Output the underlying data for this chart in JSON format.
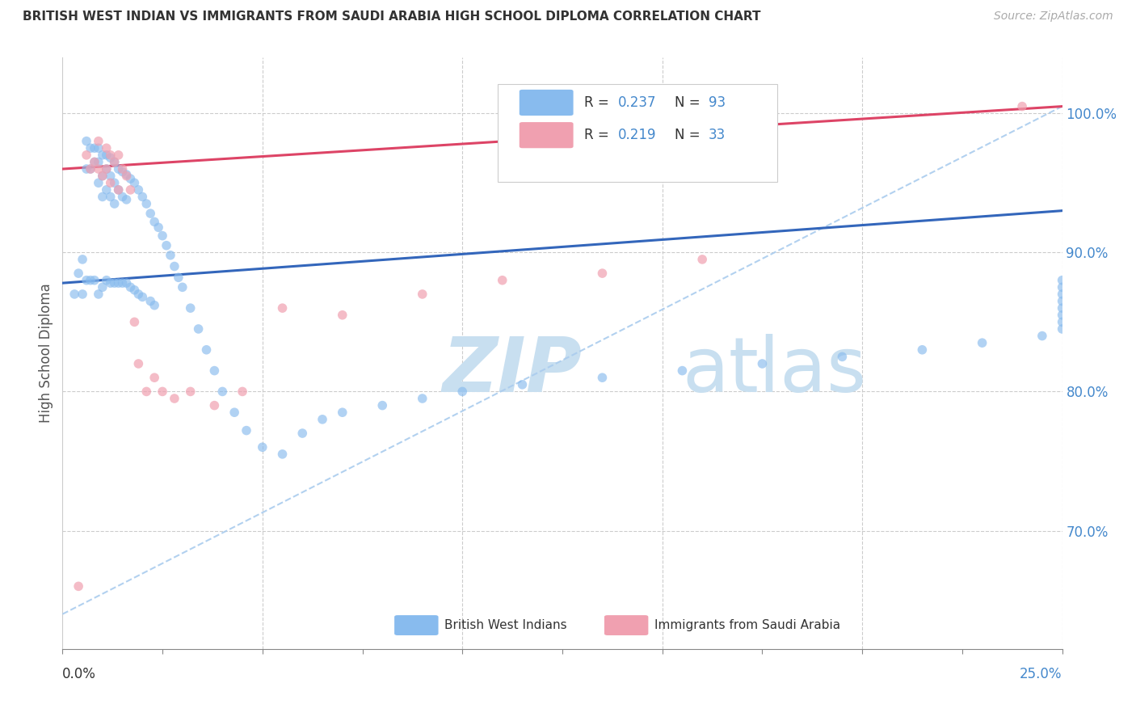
{
  "title": "BRITISH WEST INDIAN VS IMMIGRANTS FROM SAUDI ARABIA HIGH SCHOOL DIPLOMA CORRELATION CHART",
  "source": "Source: ZipAtlas.com",
  "ylabel": "High School Diploma",
  "xlim": [
    0.0,
    0.25
  ],
  "ylim": [
    0.615,
    1.04
  ],
  "color_blue": "#88bbee",
  "color_pink": "#f0a0b0",
  "color_trendline_blue": "#3366bb",
  "color_trendline_pink": "#dd4466",
  "color_trendline_dashed": "#aaccee",
  "watermark_zip": "ZIP",
  "watermark_atlas": "atlas",
  "watermark_color": "#c8dff0",
  "blue_scatter_x": [
    0.003,
    0.004,
    0.005,
    0.005,
    0.006,
    0.006,
    0.006,
    0.007,
    0.007,
    0.007,
    0.008,
    0.008,
    0.008,
    0.009,
    0.009,
    0.009,
    0.009,
    0.01,
    0.01,
    0.01,
    0.01,
    0.011,
    0.011,
    0.011,
    0.011,
    0.012,
    0.012,
    0.012,
    0.012,
    0.013,
    0.013,
    0.013,
    0.013,
    0.014,
    0.014,
    0.014,
    0.015,
    0.015,
    0.015,
    0.016,
    0.016,
    0.016,
    0.017,
    0.017,
    0.018,
    0.018,
    0.019,
    0.019,
    0.02,
    0.02,
    0.021,
    0.022,
    0.022,
    0.023,
    0.023,
    0.024,
    0.025,
    0.026,
    0.027,
    0.028,
    0.029,
    0.03,
    0.032,
    0.034,
    0.036,
    0.038,
    0.04,
    0.043,
    0.046,
    0.05,
    0.055,
    0.06,
    0.065,
    0.07,
    0.08,
    0.09,
    0.1,
    0.115,
    0.135,
    0.155,
    0.175,
    0.195,
    0.215,
    0.23,
    0.245,
    0.25,
    0.25,
    0.25,
    0.25,
    0.25,
    0.25,
    0.25,
    0.25
  ],
  "blue_scatter_y": [
    0.87,
    0.885,
    0.87,
    0.895,
    0.98,
    0.96,
    0.88,
    0.975,
    0.96,
    0.88,
    0.975,
    0.965,
    0.88,
    0.975,
    0.965,
    0.95,
    0.87,
    0.97,
    0.955,
    0.94,
    0.875,
    0.97,
    0.96,
    0.945,
    0.88,
    0.968,
    0.955,
    0.94,
    0.878,
    0.965,
    0.95,
    0.935,
    0.878,
    0.96,
    0.945,
    0.878,
    0.958,
    0.94,
    0.878,
    0.956,
    0.938,
    0.878,
    0.953,
    0.875,
    0.95,
    0.873,
    0.945,
    0.87,
    0.94,
    0.868,
    0.935,
    0.928,
    0.865,
    0.922,
    0.862,
    0.918,
    0.912,
    0.905,
    0.898,
    0.89,
    0.882,
    0.875,
    0.86,
    0.845,
    0.83,
    0.815,
    0.8,
    0.785,
    0.772,
    0.76,
    0.755,
    0.77,
    0.78,
    0.785,
    0.79,
    0.795,
    0.8,
    0.805,
    0.81,
    0.815,
    0.82,
    0.825,
    0.83,
    0.835,
    0.84,
    0.845,
    0.85,
    0.855,
    0.86,
    0.865,
    0.87,
    0.875,
    0.88
  ],
  "pink_scatter_x": [
    0.004,
    0.006,
    0.007,
    0.008,
    0.009,
    0.009,
    0.01,
    0.011,
    0.011,
    0.012,
    0.012,
    0.013,
    0.014,
    0.014,
    0.015,
    0.016,
    0.017,
    0.018,
    0.019,
    0.021,
    0.023,
    0.025,
    0.028,
    0.032,
    0.038,
    0.045,
    0.055,
    0.07,
    0.09,
    0.11,
    0.135,
    0.16,
    0.24
  ],
  "pink_scatter_y": [
    0.66,
    0.97,
    0.96,
    0.965,
    0.98,
    0.96,
    0.955,
    0.975,
    0.96,
    0.97,
    0.95,
    0.965,
    0.97,
    0.945,
    0.96,
    0.955,
    0.945,
    0.85,
    0.82,
    0.8,
    0.81,
    0.8,
    0.795,
    0.8,
    0.79,
    0.8,
    0.86,
    0.855,
    0.87,
    0.88,
    0.885,
    0.895,
    1.005
  ],
  "blue_trendline_x0": 0.0,
  "blue_trendline_y0": 0.878,
  "blue_trendline_x1": 0.25,
  "blue_trendline_y1": 0.93,
  "pink_trendline_x0": 0.0,
  "pink_trendline_y0": 0.96,
  "pink_trendline_x1": 0.25,
  "pink_trendline_y1": 1.005,
  "dashed_trendline_x0": 0.0,
  "dashed_trendline_y0": 0.64,
  "dashed_trendline_x1": 0.25,
  "dashed_trendline_y1": 1.005
}
